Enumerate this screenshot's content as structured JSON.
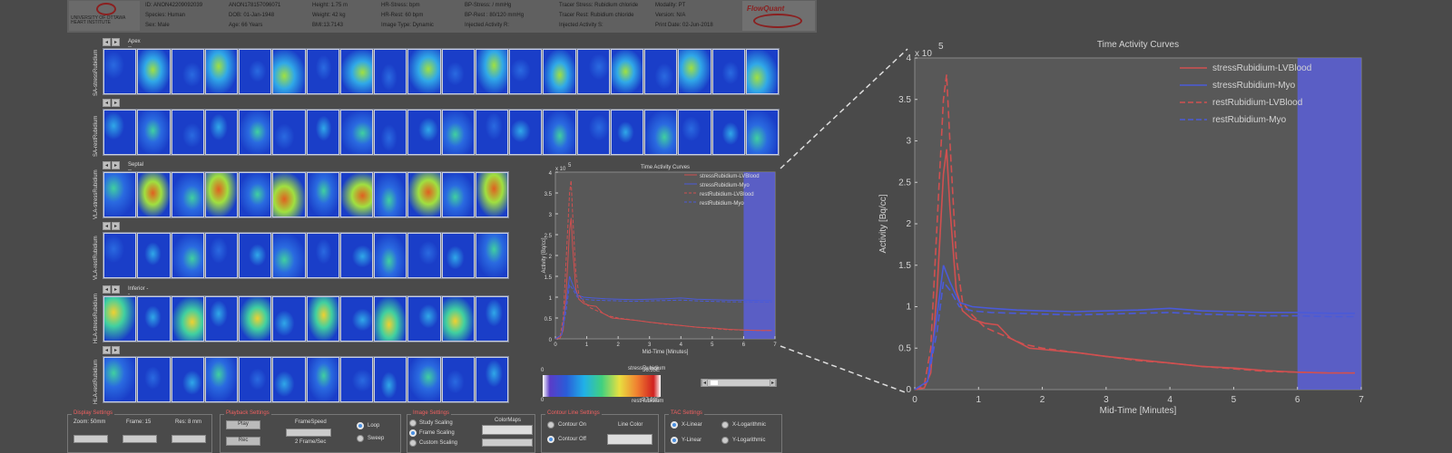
{
  "header": {
    "col1": [
      "ID: ANON42209092039",
      "Species: Human",
      "Sex: Male"
    ],
    "col2": [
      "ANON178157096071",
      "DOB: 01-Jan-1948",
      "Age: 66 Years"
    ],
    "col3": [
      "Height: 1.75 m",
      "Weight: 42 kg",
      "BMI:13.7143"
    ],
    "col4": [
      "HR-Stress:  bpm",
      "HR-Rest: 60 bpm",
      "Image Type: Dynamic"
    ],
    "col5": [
      "BP-Stress:  / mmHg",
      "BP-Rest : 80/120 mmHg",
      "Injected Activity R:"
    ],
    "col6": [
      "Tracer Stress: Rubidium chloride",
      "Tracer Rest: Rubidium chloride",
      "Injected Activity S:"
    ],
    "col7": [
      "Modality: PT",
      "Version: N/A",
      "Print Date: 02-Jun-2018"
    ],
    "logo_right": "FlowQuant",
    "logo_left": "UNIVERSITY OF OTTAWA HEART INSTITUTE"
  },
  "rows": [
    {
      "section": "Apex -- Base",
      "side_label": "SA-stressRubidium",
      "tiles": 20
    },
    {
      "section": "",
      "side_label": "SA-restRubidium",
      "tiles": 20
    },
    {
      "section": "Septal -- Lateral",
      "side_label": "VLA-stressRubidium",
      "tiles": 12
    },
    {
      "section": "",
      "side_label": "VLA-restRubidium",
      "tiles": 12
    },
    {
      "section": "Inferior -- Posterior",
      "side_label": "HLA-stressRubidium",
      "tiles": 12
    },
    {
      "section": "",
      "side_label": "HLA-restRubidium",
      "tiles": 12
    }
  ],
  "nav": {
    "prev": "◂",
    "next": "▸"
  },
  "chart_data": {
    "type": "line",
    "title": "Time Activity Curves",
    "xlabel": "Mid-Time [Minutes]",
    "ylabel": "Activity [Bq/cc]",
    "y_multiplier": "x 10",
    "y_exponent": "5",
    "xlim": [
      0,
      7
    ],
    "ylim": [
      0,
      4
    ],
    "xticks": [
      "0",
      "1",
      "2",
      "3",
      "4",
      "5",
      "6",
      "7"
    ],
    "yticks": [
      "0",
      "0.5",
      "1",
      "1.5",
      "2",
      "2.5",
      "3",
      "3.5",
      "4"
    ],
    "highlight_region": [
      6,
      7
    ],
    "legend_placement": "top-right",
    "series": [
      {
        "name": "stressRubidium-LVBlood",
        "color": "#d05050",
        "dash": false,
        "x": [
          0,
          0.15,
          0.25,
          0.35,
          0.45,
          0.5,
          0.55,
          0.65,
          0.75,
          0.9,
          1.1,
          1.3,
          1.5,
          1.8,
          2.2,
          2.6,
          3,
          3.5,
          4,
          4.5,
          5,
          5.5,
          6,
          6.5,
          6.9
        ],
        "y": [
          0,
          0.02,
          0.2,
          1.2,
          2.6,
          2.9,
          2.2,
          1.2,
          0.95,
          0.85,
          0.8,
          0.78,
          0.62,
          0.5,
          0.47,
          0.44,
          0.4,
          0.36,
          0.32,
          0.28,
          0.26,
          0.23,
          0.21,
          0.2,
          0.2
        ]
      },
      {
        "name": "stressRubidium-Myo",
        "color": "#4a5ad8",
        "dash": false,
        "x": [
          0,
          0.2,
          0.35,
          0.45,
          0.55,
          0.7,
          0.9,
          1.2,
          1.6,
          2,
          2.5,
          3,
          3.5,
          4,
          4.5,
          5,
          5.5,
          6,
          6.5,
          6.9
        ],
        "y": [
          0,
          0.1,
          0.9,
          1.5,
          1.3,
          1.05,
          1.0,
          0.98,
          0.96,
          0.95,
          0.94,
          0.95,
          0.96,
          0.98,
          0.95,
          0.94,
          0.93,
          0.93,
          0.92,
          0.92
        ]
      },
      {
        "name": "restRubidium-LVBlood",
        "color": "#d05050",
        "dash": true,
        "x": [
          0,
          0.15,
          0.25,
          0.35,
          0.45,
          0.5,
          0.55,
          0.65,
          0.75,
          0.9,
          1.1,
          1.4,
          1.7,
          2,
          2.5,
          3,
          3.5,
          4,
          4.5,
          5,
          5.5,
          6,
          6.5,
          6.9
        ],
        "y": [
          0,
          0.05,
          0.5,
          2.0,
          3.5,
          3.8,
          3.0,
          1.6,
          1.05,
          0.9,
          0.75,
          0.65,
          0.55,
          0.5,
          0.45,
          0.4,
          0.35,
          0.32,
          0.28,
          0.25,
          0.22,
          0.21,
          0.2,
          0.2
        ]
      },
      {
        "name": "restRubidium-Myo",
        "color": "#4a5ad8",
        "dash": true,
        "x": [
          0,
          0.2,
          0.35,
          0.45,
          0.55,
          0.7,
          0.9,
          1.2,
          1.6,
          2,
          2.5,
          3,
          3.5,
          4,
          4.5,
          5,
          5.5,
          6,
          6.5,
          6.9
        ],
        "y": [
          0,
          0.1,
          0.7,
          1.3,
          1.2,
          1.0,
          0.95,
          0.93,
          0.92,
          0.91,
          0.9,
          0.91,
          0.92,
          0.93,
          0.91,
          0.9,
          0.89,
          0.89,
          0.88,
          0.88
        ]
      }
    ]
  },
  "colorbar": {
    "top_label": "stressRubidium",
    "bottom_label": "restRubidium",
    "left_top": "0",
    "right_top": "36.55E",
    "left_bottom": "0",
    "right_bottom": "27.92E"
  },
  "panel": {
    "display": {
      "title": "Display Settings",
      "zoom": "Zoom: 50mm",
      "frame": "Frame: 15",
      "res": "Res: 8 mm"
    },
    "playback": {
      "title": "Playback Settings",
      "play": "Play",
      "rec": "Rec",
      "framespeed": "FrameSpeed",
      "rate": "2 Frame/Sec",
      "loop": "Loop",
      "sweep": "Sweep"
    },
    "image": {
      "title": "Image Settings",
      "study": "Study Scaling",
      "frame": "Frame Scaling",
      "custom": "Custom Scaling",
      "colormaps": "ColorMaps"
    },
    "contour": {
      "title": "Contour Line Settings",
      "on": "Contour On",
      "off": "Contour Off",
      "linecolor": "Line Color"
    },
    "tac": {
      "title": "TAC Settings",
      "xlin": "X-Linear",
      "xlog": "X-Logarithmic",
      "ylin": "Y-Linear",
      "ylog": "Y-Logarithmic"
    }
  },
  "colors": {
    "accent": "#4a90e2",
    "highlight": "#5a5fd8"
  }
}
